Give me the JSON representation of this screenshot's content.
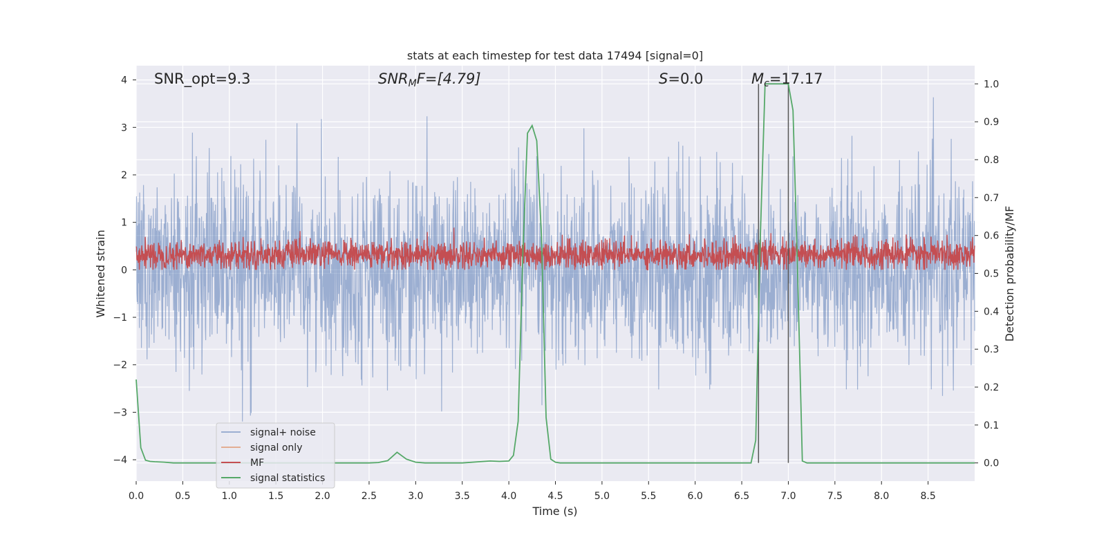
{
  "chart_data": {
    "type": "line",
    "title": "stats at each timestep for test data 17494 [signal=0]",
    "xlabel": "Time (s)",
    "ylabel": "Whitened strain",
    "y2label": "Detection probability/MF",
    "xlim": [
      0.0,
      9.0
    ],
    "ylim": [
      -4.45,
      4.3
    ],
    "y2lim": [
      -0.048,
      1.048
    ],
    "xticks": [
      "0.0",
      "0.5",
      "1.0",
      "1.5",
      "2.0",
      "2.5",
      "3.0",
      "3.5",
      "4.0",
      "4.5",
      "5.0",
      "5.5",
      "6.0",
      "6.5",
      "7.0",
      "7.5",
      "8.0",
      "8.5"
    ],
    "yticks": [
      "4",
      "3",
      "2",
      "1",
      "0",
      "−1",
      "−2",
      "−3",
      "−4"
    ],
    "y2ticks": [
      "1.0",
      "0.9",
      "0.8",
      "0.7",
      "0.6",
      "0.5",
      "0.4",
      "0.3",
      "0.2",
      "0.1",
      "0.0"
    ],
    "grid": true,
    "legend_position": "lower-left",
    "annotations": {
      "snr_opt": "SNR_opt=9.3",
      "snr_mf_main": "SNR",
      "snr_mf_sub": "M",
      "snr_mf_rest": "F=[4.79]",
      "s_main": "S",
      "s_rest": "=0.0",
      "mc_main": "M",
      "mc_sub": "c",
      "mc_rest": "=17.17"
    },
    "series": [
      {
        "name": "signal+ noise",
        "color": "#4c72b0",
        "axis": "left",
        "approx": "whitened noise, amplitude mostly within ±2 with spikes to ~±4",
        "max": 3.9,
        "min": -4.0
      },
      {
        "name": "signal only",
        "color": "#dd8452",
        "axis": "left",
        "values_note": "not visible (signal=0)"
      },
      {
        "name": "MF",
        "color": "#c44e52",
        "axis": "left",
        "approx": "matched-filter output band between ~0.0 and ~0.8",
        "max": 1.0
      },
      {
        "name": "signal statistics",
        "color": "#55a868",
        "axis": "right",
        "x": [
          0.0,
          0.05,
          0.1,
          0.15,
          0.2,
          0.3,
          0.4,
          0.5,
          1.0,
          1.5,
          2.0,
          2.5,
          2.6,
          2.7,
          2.8,
          2.9,
          3.0,
          3.1,
          3.5,
          3.8,
          3.9,
          4.0,
          4.05,
          4.1,
          4.15,
          4.2,
          4.25,
          4.3,
          4.35,
          4.4,
          4.45,
          4.5,
          4.55,
          5.0,
          6.0,
          6.6,
          6.65,
          6.7,
          6.75,
          6.8,
          7.0,
          7.05,
          7.1,
          7.15,
          7.2,
          7.5,
          8.0,
          8.5,
          9.0
        ],
        "values": [
          0.22,
          0.04,
          0.007,
          0.004,
          0.003,
          0.002,
          0.0,
          0.0,
          0.0,
          0.0,
          0.0,
          0.0,
          0.001,
          0.006,
          0.028,
          0.01,
          0.002,
          0.0,
          0.0,
          0.005,
          0.004,
          0.005,
          0.02,
          0.11,
          0.55,
          0.87,
          0.89,
          0.85,
          0.6,
          0.12,
          0.01,
          0.002,
          0.0,
          0.0,
          0.0,
          0.0,
          0.06,
          0.6,
          1.0,
          1.0,
          1.0,
          0.93,
          0.5,
          0.005,
          0.0,
          0.0,
          0.0,
          0.0,
          0.0
        ]
      }
    ],
    "vlines": [
      6.68,
      7.0
    ]
  }
}
